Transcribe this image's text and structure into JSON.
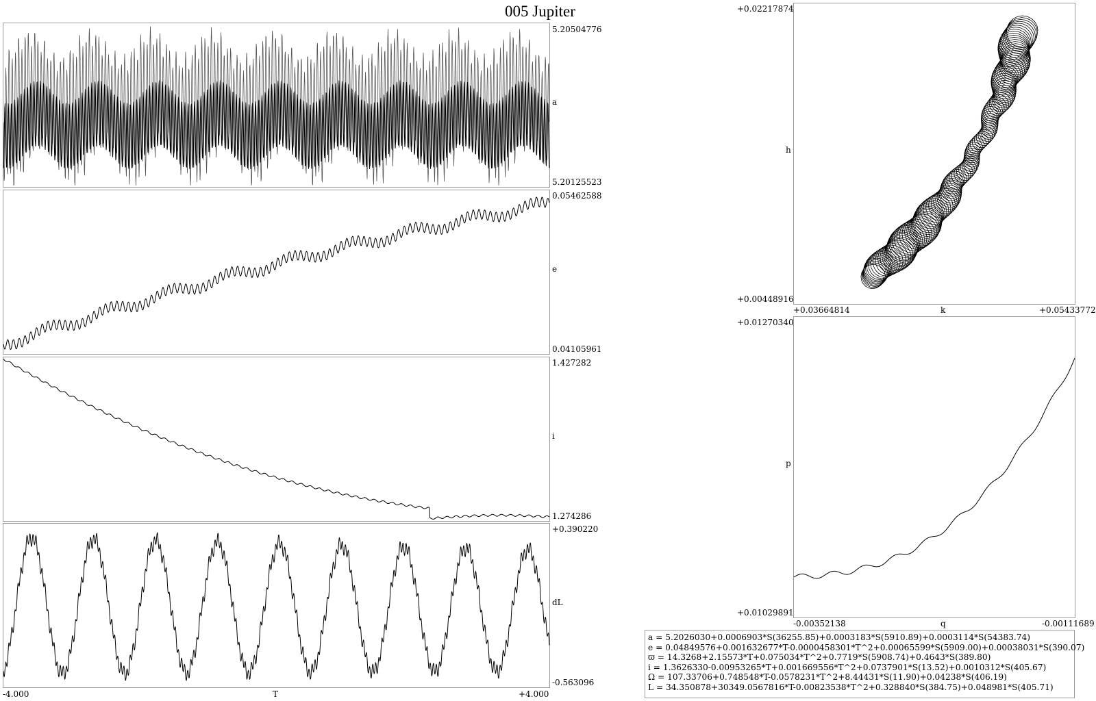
{
  "title": "005 Jupiter",
  "time_axis": {
    "xmin": "-4.000",
    "xlabel": "T",
    "xmax": "+4.000"
  },
  "chart_data": [
    {
      "id": "a",
      "type": "line",
      "ylabel": "a",
      "ymax": "5.20504776",
      "ymin": "5.20125523",
      "xlim": [
        -4,
        4
      ],
      "description_values": {
        "mean": 5.202603,
        "period_range": "short oscillation with ~9 slow cycles"
      }
    },
    {
      "id": "e",
      "type": "line",
      "ylabel": "e",
      "ymax": "0.05462588",
      "ymin": "0.04105961",
      "xlim": [
        -4,
        4
      ],
      "start": 0.0413,
      "end": 0.0545
    },
    {
      "id": "i",
      "type": "line",
      "ylabel": "i",
      "ymax": "1.427282",
      "ymin": "1.274286",
      "xlim": [
        -4,
        4
      ],
      "start": 1.4273,
      "minimum": 1.2743,
      "end": 1.277
    },
    {
      "id": "dL",
      "type": "line",
      "ylabel": "dL",
      "ymax": "+0.390220",
      "ymin": "-0.563096",
      "xlim": [
        -4,
        4
      ],
      "cycles": 8
    },
    {
      "id": "hk",
      "type": "line",
      "xlabel": "k",
      "ylabel": "h",
      "xmin": "+0.03664814",
      "xmax": "+0.05433772",
      "ymin": "+0.00448916",
      "ymax": "+0.02217874"
    },
    {
      "id": "pq",
      "type": "line",
      "xlabel": "q",
      "ylabel": "p",
      "xmin": "-0.00352138",
      "xmax": "-0.00111689",
      "ymin": "+0.01029891",
      "ymax": "+0.01270340"
    }
  ],
  "formulas": [
    "a = 5.2026030+0.0006903*S(36255.85)+0.0003183*S(5910.89)+0.0003114*S(54383.74)",
    "e = 0.04849576+0.001632677*T-0.0000458301*T^2+0.00065599*S(5909.00)+0.00038031*S(390.07)",
    "ϖ = 14.3268+2.15573*T+0.075034*T^2+0.7719*S(5908.74)+0.4643*S(389.80)",
    "i = 1.3626330-0.00953265*T+0.001669556*T^2+0.0737901*S(13.52)+0.0010312*S(405.67)",
    "Ω = 107.33706+0.748548*T-0.0578231*T^2+8.44431*S(11.90)+0.04238*S(406.19)",
    "L = 34.350878+30349.0567816*T-0.00823538*T^2+0.328840*S(384.75)+0.048981*S(405.71)"
  ]
}
